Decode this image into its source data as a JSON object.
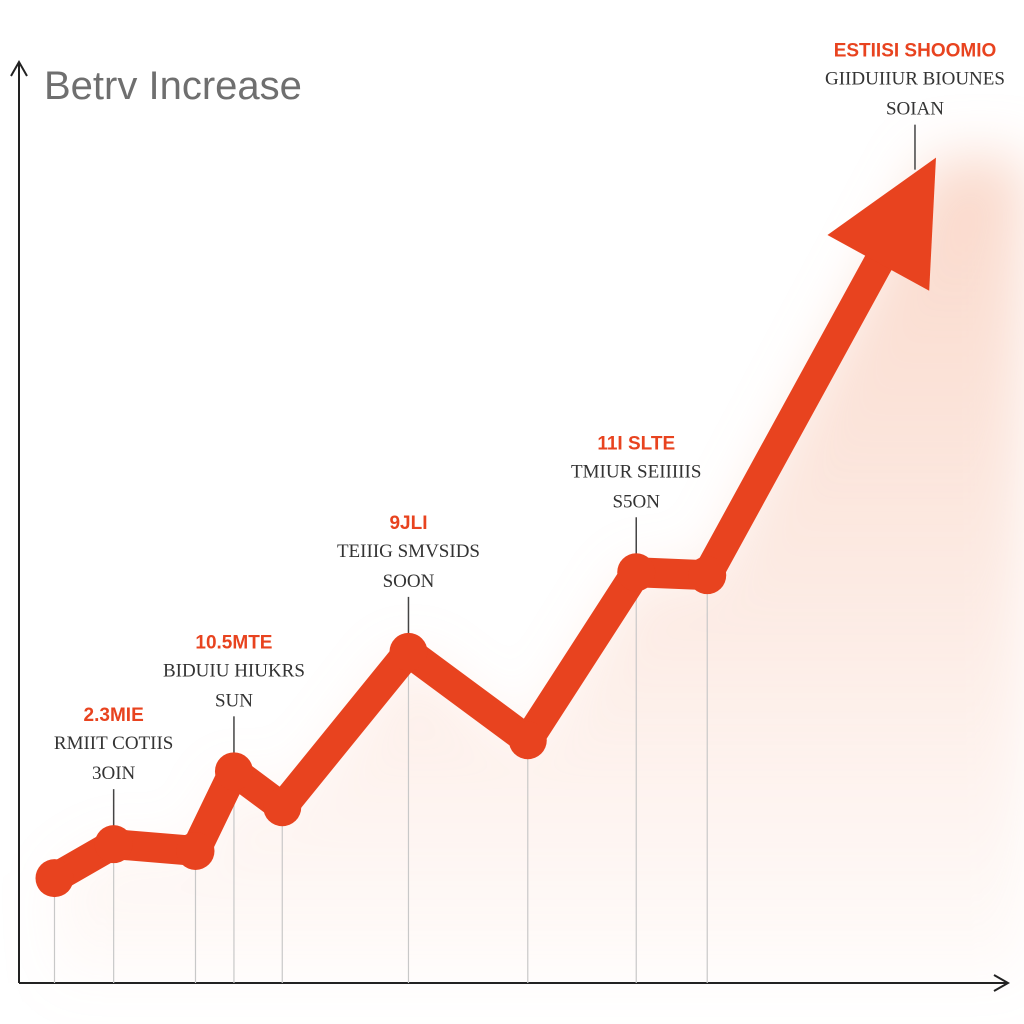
{
  "chart_data": {
    "type": "line",
    "title": "Betrv Increase",
    "xlabel": "",
    "ylabel": "",
    "grid": false,
    "legend": "none",
    "xlim": [
      0,
      100
    ],
    "ylim": [
      0,
      100
    ],
    "series": [
      {
        "points": [
          {
            "x": 3.6,
            "y": 10.8
          },
          {
            "x": 9.6,
            "y": 14.3
          },
          {
            "x": 17.9,
            "y": 13.6
          },
          {
            "x": 21.8,
            "y": 21.8
          },
          {
            "x": 26.7,
            "y": 18.1
          },
          {
            "x": 39.5,
            "y": 34.1
          },
          {
            "x": 51.6,
            "y": 25.0
          },
          {
            "x": 62.6,
            "y": 42.3
          },
          {
            "x": 69.8,
            "y": 42.0
          },
          {
            "x": 93.0,
            "y": 85.0
          }
        ],
        "markers": [
          0,
          1,
          2,
          3,
          4,
          5,
          6,
          7,
          8
        ],
        "end": "arrow"
      }
    ],
    "annotations": [
      {
        "point": 1,
        "value": "2.3MIE",
        "line1": "RMIIT COTIIS",
        "line2": "3OIN"
      },
      {
        "point": 3,
        "value": "10.5MTE",
        "line1": "BIDUIU HIUKRS",
        "line2": "SUN"
      },
      {
        "point": 5,
        "value": "9JLI",
        "line1": "TEIIIG SMVSIDS",
        "line2": "SOON"
      },
      {
        "point": 7,
        "value": "11I SLTE",
        "line1": "TMIUR SEIIIIIS",
        "line2": "S5ON"
      },
      {
        "point": 9,
        "value": "ESTIISI SHOOMIO",
        "line1": "GIIDUIIUR BIOUNES",
        "line2": "SOIAN"
      }
    ],
    "colors": {
      "line": "#e8431f",
      "value_text": "#e8431f",
      "label_text": "#333333",
      "axis": "#222222",
      "title": "#6f6f6f",
      "glow": "#f6b9a0"
    }
  }
}
